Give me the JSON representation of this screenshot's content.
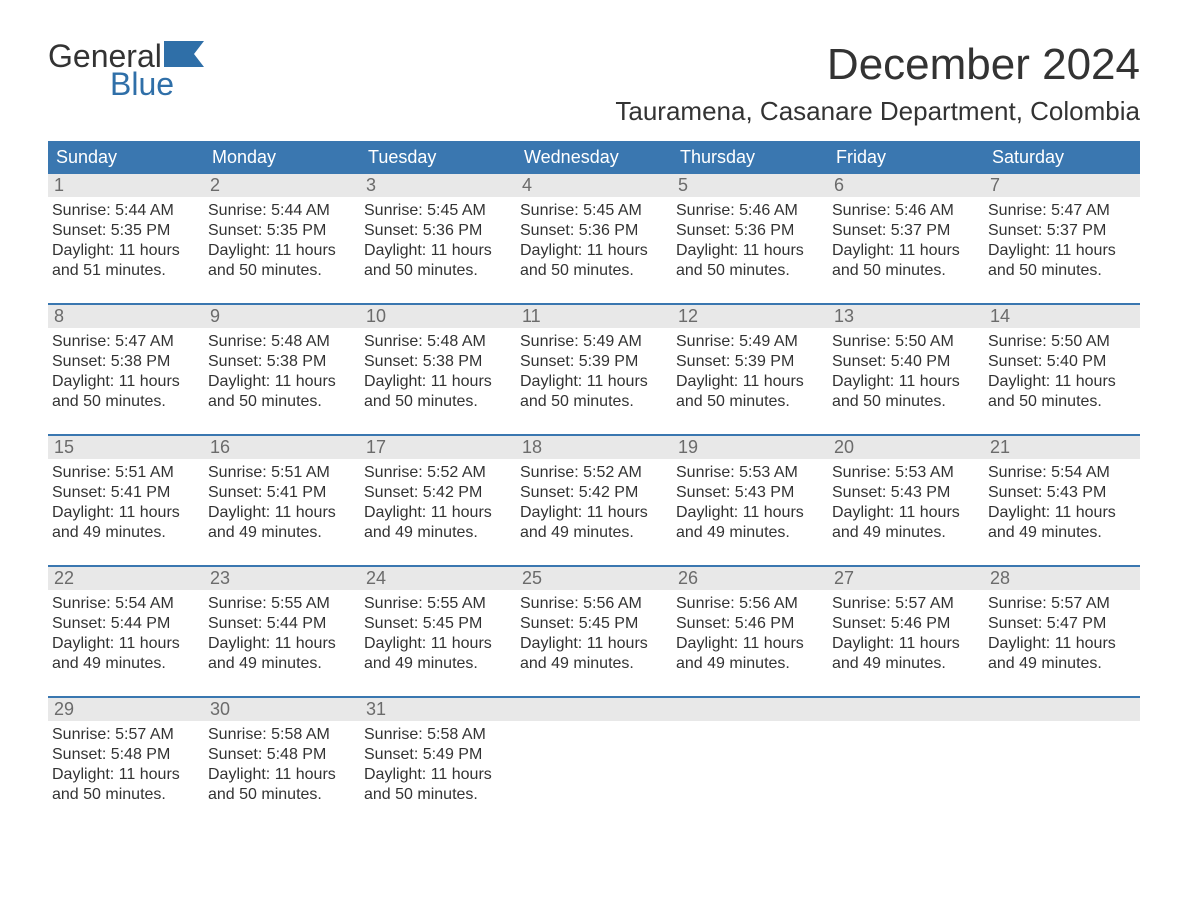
{
  "logo": {
    "word1": "General",
    "word2": "Blue"
  },
  "header": {
    "month_title": "December 2024",
    "location": "Tauramena, Casanare Department, Colombia"
  },
  "colors": {
    "header_bg": "#3a77b0",
    "header_text": "#ffffff",
    "day_number_bg": "#e8e8e8",
    "day_number_text": "#6b6b6b",
    "body_text": "#333333",
    "logo_accent": "#2f6fa8",
    "row_border": "#3a77b0",
    "background": "#ffffff"
  },
  "weekdays": [
    "Sunday",
    "Monday",
    "Tuesday",
    "Wednesday",
    "Thursday",
    "Friday",
    "Saturday"
  ],
  "weeks": [
    [
      {
        "day": "1",
        "sunrise": "Sunrise: 5:44 AM",
        "sunset": "Sunset: 5:35 PM",
        "dl1": "Daylight: 11 hours",
        "dl2": "and 51 minutes."
      },
      {
        "day": "2",
        "sunrise": "Sunrise: 5:44 AM",
        "sunset": "Sunset: 5:35 PM",
        "dl1": "Daylight: 11 hours",
        "dl2": "and 50 minutes."
      },
      {
        "day": "3",
        "sunrise": "Sunrise: 5:45 AM",
        "sunset": "Sunset: 5:36 PM",
        "dl1": "Daylight: 11 hours",
        "dl2": "and 50 minutes."
      },
      {
        "day": "4",
        "sunrise": "Sunrise: 5:45 AM",
        "sunset": "Sunset: 5:36 PM",
        "dl1": "Daylight: 11 hours",
        "dl2": "and 50 minutes."
      },
      {
        "day": "5",
        "sunrise": "Sunrise: 5:46 AM",
        "sunset": "Sunset: 5:36 PM",
        "dl1": "Daylight: 11 hours",
        "dl2": "and 50 minutes."
      },
      {
        "day": "6",
        "sunrise": "Sunrise: 5:46 AM",
        "sunset": "Sunset: 5:37 PM",
        "dl1": "Daylight: 11 hours",
        "dl2": "and 50 minutes."
      },
      {
        "day": "7",
        "sunrise": "Sunrise: 5:47 AM",
        "sunset": "Sunset: 5:37 PM",
        "dl1": "Daylight: 11 hours",
        "dl2": "and 50 minutes."
      }
    ],
    [
      {
        "day": "8",
        "sunrise": "Sunrise: 5:47 AM",
        "sunset": "Sunset: 5:38 PM",
        "dl1": "Daylight: 11 hours",
        "dl2": "and 50 minutes."
      },
      {
        "day": "9",
        "sunrise": "Sunrise: 5:48 AM",
        "sunset": "Sunset: 5:38 PM",
        "dl1": "Daylight: 11 hours",
        "dl2": "and 50 minutes."
      },
      {
        "day": "10",
        "sunrise": "Sunrise: 5:48 AM",
        "sunset": "Sunset: 5:38 PM",
        "dl1": "Daylight: 11 hours",
        "dl2": "and 50 minutes."
      },
      {
        "day": "11",
        "sunrise": "Sunrise: 5:49 AM",
        "sunset": "Sunset: 5:39 PM",
        "dl1": "Daylight: 11 hours",
        "dl2": "and 50 minutes."
      },
      {
        "day": "12",
        "sunrise": "Sunrise: 5:49 AM",
        "sunset": "Sunset: 5:39 PM",
        "dl1": "Daylight: 11 hours",
        "dl2": "and 50 minutes."
      },
      {
        "day": "13",
        "sunrise": "Sunrise: 5:50 AM",
        "sunset": "Sunset: 5:40 PM",
        "dl1": "Daylight: 11 hours",
        "dl2": "and 50 minutes."
      },
      {
        "day": "14",
        "sunrise": "Sunrise: 5:50 AM",
        "sunset": "Sunset: 5:40 PM",
        "dl1": "Daylight: 11 hours",
        "dl2": "and 50 minutes."
      }
    ],
    [
      {
        "day": "15",
        "sunrise": "Sunrise: 5:51 AM",
        "sunset": "Sunset: 5:41 PM",
        "dl1": "Daylight: 11 hours",
        "dl2": "and 49 minutes."
      },
      {
        "day": "16",
        "sunrise": "Sunrise: 5:51 AM",
        "sunset": "Sunset: 5:41 PM",
        "dl1": "Daylight: 11 hours",
        "dl2": "and 49 minutes."
      },
      {
        "day": "17",
        "sunrise": "Sunrise: 5:52 AM",
        "sunset": "Sunset: 5:42 PM",
        "dl1": "Daylight: 11 hours",
        "dl2": "and 49 minutes."
      },
      {
        "day": "18",
        "sunrise": "Sunrise: 5:52 AM",
        "sunset": "Sunset: 5:42 PM",
        "dl1": "Daylight: 11 hours",
        "dl2": "and 49 minutes."
      },
      {
        "day": "19",
        "sunrise": "Sunrise: 5:53 AM",
        "sunset": "Sunset: 5:43 PM",
        "dl1": "Daylight: 11 hours",
        "dl2": "and 49 minutes."
      },
      {
        "day": "20",
        "sunrise": "Sunrise: 5:53 AM",
        "sunset": "Sunset: 5:43 PM",
        "dl1": "Daylight: 11 hours",
        "dl2": "and 49 minutes."
      },
      {
        "day": "21",
        "sunrise": "Sunrise: 5:54 AM",
        "sunset": "Sunset: 5:43 PM",
        "dl1": "Daylight: 11 hours",
        "dl2": "and 49 minutes."
      }
    ],
    [
      {
        "day": "22",
        "sunrise": "Sunrise: 5:54 AM",
        "sunset": "Sunset: 5:44 PM",
        "dl1": "Daylight: 11 hours",
        "dl2": "and 49 minutes."
      },
      {
        "day": "23",
        "sunrise": "Sunrise: 5:55 AM",
        "sunset": "Sunset: 5:44 PM",
        "dl1": "Daylight: 11 hours",
        "dl2": "and 49 minutes."
      },
      {
        "day": "24",
        "sunrise": "Sunrise: 5:55 AM",
        "sunset": "Sunset: 5:45 PM",
        "dl1": "Daylight: 11 hours",
        "dl2": "and 49 minutes."
      },
      {
        "day": "25",
        "sunrise": "Sunrise: 5:56 AM",
        "sunset": "Sunset: 5:45 PM",
        "dl1": "Daylight: 11 hours",
        "dl2": "and 49 minutes."
      },
      {
        "day": "26",
        "sunrise": "Sunrise: 5:56 AM",
        "sunset": "Sunset: 5:46 PM",
        "dl1": "Daylight: 11 hours",
        "dl2": "and 49 minutes."
      },
      {
        "day": "27",
        "sunrise": "Sunrise: 5:57 AM",
        "sunset": "Sunset: 5:46 PM",
        "dl1": "Daylight: 11 hours",
        "dl2": "and 49 minutes."
      },
      {
        "day": "28",
        "sunrise": "Sunrise: 5:57 AM",
        "sunset": "Sunset: 5:47 PM",
        "dl1": "Daylight: 11 hours",
        "dl2": "and 49 minutes."
      }
    ],
    [
      {
        "day": "29",
        "sunrise": "Sunrise: 5:57 AM",
        "sunset": "Sunset: 5:48 PM",
        "dl1": "Daylight: 11 hours",
        "dl2": "and 50 minutes."
      },
      {
        "day": "30",
        "sunrise": "Sunrise: 5:58 AM",
        "sunset": "Sunset: 5:48 PM",
        "dl1": "Daylight: 11 hours",
        "dl2": "and 50 minutes."
      },
      {
        "day": "31",
        "sunrise": "Sunrise: 5:58 AM",
        "sunset": "Sunset: 5:49 PM",
        "dl1": "Daylight: 11 hours",
        "dl2": "and 50 minutes."
      },
      {
        "day": "",
        "sunrise": "",
        "sunset": "",
        "dl1": "",
        "dl2": ""
      },
      {
        "day": "",
        "sunrise": "",
        "sunset": "",
        "dl1": "",
        "dl2": ""
      },
      {
        "day": "",
        "sunrise": "",
        "sunset": "",
        "dl1": "",
        "dl2": ""
      },
      {
        "day": "",
        "sunrise": "",
        "sunset": "",
        "dl1": "",
        "dl2": ""
      }
    ]
  ]
}
